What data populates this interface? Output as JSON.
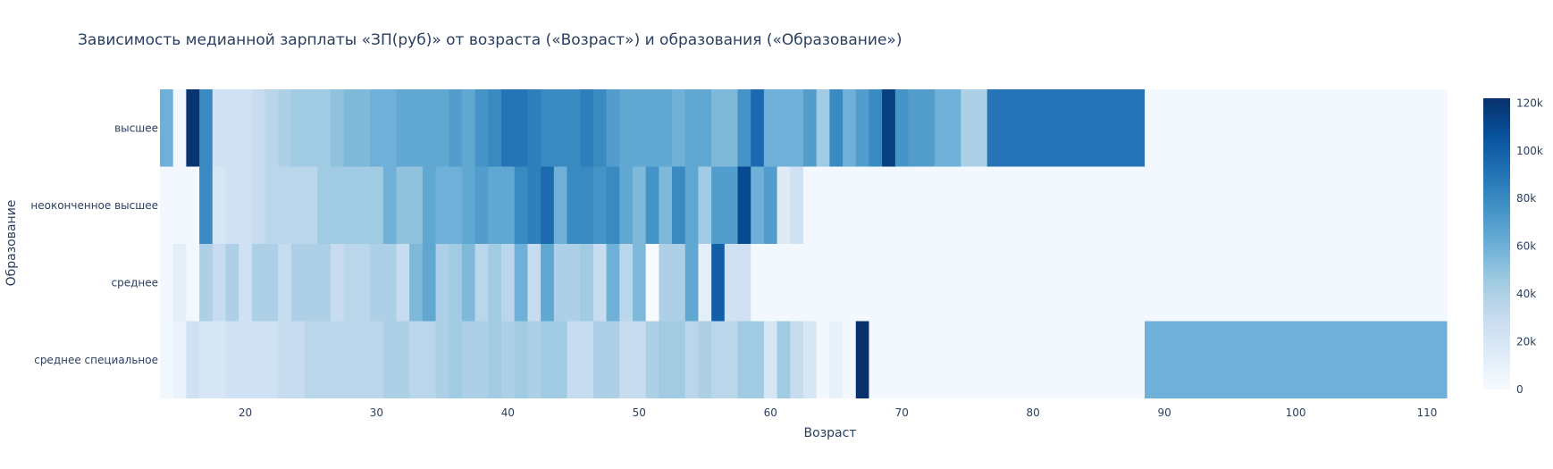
{
  "chart_data": {
    "type": "heatmap",
    "title": "Зависимость медианной зарплаты «ЗП(руб)» от возраста («Возраст») и образования («Образование»)",
    "xlabel": "Возраст",
    "ylabel": "Образование",
    "x_range": [
      13.5,
      111.5
    ],
    "x_ticks": [
      20,
      30,
      40,
      50,
      60,
      70,
      80,
      90,
      100,
      110
    ],
    "categories": [
      "высшее",
      "неоконченное высшее",
      "среднее",
      "среднее специальное"
    ],
    "colorscale": "Blues",
    "colorbar": {
      "min": 0,
      "max": 122000,
      "ticks": [
        0,
        20000,
        40000,
        60000,
        80000,
        100000,
        120000
      ],
      "tick_labels": [
        "0",
        "20k",
        "40k",
        "60k",
        "80k",
        "100k",
        "120k"
      ]
    },
    "rows": [
      {
        "name": "высшее",
        "segments": [
          [
            14,
            14,
            60000
          ],
          [
            15,
            15,
            4000
          ],
          [
            16,
            16,
            120000
          ],
          [
            17,
            17,
            80000
          ],
          [
            18,
            20,
            25000
          ],
          [
            21,
            21,
            30000
          ],
          [
            22,
            22,
            35000
          ],
          [
            23,
            23,
            40000
          ],
          [
            24,
            26,
            45000
          ],
          [
            27,
            27,
            50000
          ],
          [
            28,
            29,
            55000
          ],
          [
            30,
            31,
            60000
          ],
          [
            32,
            35,
            65000
          ],
          [
            36,
            36,
            70000
          ],
          [
            37,
            37,
            65000
          ],
          [
            38,
            38,
            75000
          ],
          [
            39,
            39,
            80000
          ],
          [
            40,
            41,
            90000
          ],
          [
            42,
            42,
            85000
          ],
          [
            43,
            45,
            80000
          ],
          [
            46,
            46,
            85000
          ],
          [
            47,
            47,
            80000
          ],
          [
            48,
            48,
            70000
          ],
          [
            49,
            52,
            65000
          ],
          [
            53,
            53,
            60000
          ],
          [
            54,
            55,
            65000
          ],
          [
            56,
            57,
            55000
          ],
          [
            58,
            58,
            75000
          ],
          [
            59,
            59,
            95000
          ],
          [
            60,
            62,
            60000
          ],
          [
            63,
            63,
            70000
          ],
          [
            64,
            64,
            45000
          ],
          [
            65,
            65,
            80000
          ],
          [
            66,
            66,
            60000
          ],
          [
            67,
            67,
            70000
          ],
          [
            68,
            68,
            80000
          ],
          [
            69,
            69,
            115000
          ],
          [
            70,
            70,
            75000
          ],
          [
            71,
            72,
            70000
          ],
          [
            73,
            74,
            60000
          ],
          [
            75,
            76,
            40000
          ],
          [
            77,
            88,
            90000
          ],
          [
            89,
            111,
            3000
          ]
        ]
      },
      {
        "name": "неоконченное высшее",
        "segments": [
          [
            14,
            16,
            3000
          ],
          [
            17,
            17,
            80000
          ],
          [
            18,
            18,
            20000
          ],
          [
            19,
            20,
            25000
          ],
          [
            21,
            21,
            30000
          ],
          [
            22,
            25,
            35000
          ],
          [
            26,
            30,
            45000
          ],
          [
            31,
            31,
            60000
          ],
          [
            32,
            33,
            50000
          ],
          [
            34,
            34,
            65000
          ],
          [
            35,
            36,
            60000
          ],
          [
            37,
            37,
            65000
          ],
          [
            38,
            38,
            70000
          ],
          [
            39,
            40,
            65000
          ],
          [
            41,
            41,
            80000
          ],
          [
            42,
            42,
            85000
          ],
          [
            43,
            43,
            95000
          ],
          [
            44,
            44,
            60000
          ],
          [
            45,
            46,
            80000
          ],
          [
            47,
            47,
            75000
          ],
          [
            48,
            48,
            80000
          ],
          [
            49,
            49,
            65000
          ],
          [
            50,
            50,
            55000
          ],
          [
            51,
            51,
            75000
          ],
          [
            52,
            52,
            55000
          ],
          [
            53,
            53,
            80000
          ],
          [
            54,
            54,
            65000
          ],
          [
            55,
            55,
            45000
          ],
          [
            56,
            57,
            70000
          ],
          [
            58,
            58,
            110000
          ],
          [
            59,
            59,
            60000
          ],
          [
            60,
            60,
            70000
          ],
          [
            61,
            61,
            15000
          ],
          [
            62,
            62,
            25000
          ],
          [
            63,
            111,
            3000
          ]
        ]
      },
      {
        "name": "среднее",
        "segments": [
          [
            14,
            14,
            3000
          ],
          [
            15,
            15,
            12000
          ],
          [
            16,
            16,
            3000
          ],
          [
            17,
            17,
            40000
          ],
          [
            18,
            18,
            30000
          ],
          [
            19,
            19,
            40000
          ],
          [
            20,
            20,
            25000
          ],
          [
            21,
            22,
            40000
          ],
          [
            23,
            23,
            30000
          ],
          [
            24,
            26,
            40000
          ],
          [
            27,
            27,
            30000
          ],
          [
            28,
            29,
            35000
          ],
          [
            30,
            31,
            40000
          ],
          [
            32,
            32,
            30000
          ],
          [
            33,
            33,
            55000
          ],
          [
            34,
            34,
            65000
          ],
          [
            35,
            35,
            40000
          ],
          [
            36,
            36,
            45000
          ],
          [
            37,
            37,
            55000
          ],
          [
            38,
            38,
            35000
          ],
          [
            39,
            39,
            45000
          ],
          [
            40,
            40,
            35000
          ],
          [
            41,
            41,
            60000
          ],
          [
            42,
            42,
            30000
          ],
          [
            43,
            43,
            65000
          ],
          [
            44,
            45,
            40000
          ],
          [
            46,
            46,
            45000
          ],
          [
            47,
            47,
            30000
          ],
          [
            48,
            48,
            60000
          ],
          [
            49,
            49,
            35000
          ],
          [
            50,
            50,
            55000
          ],
          [
            51,
            51,
            0
          ],
          [
            52,
            53,
            40000
          ],
          [
            54,
            54,
            65000
          ],
          [
            55,
            55,
            12000
          ],
          [
            56,
            56,
            100000
          ],
          [
            57,
            58,
            25000
          ],
          [
            59,
            111,
            3000
          ]
        ]
      },
      {
        "name": "среднее специальное",
        "segments": [
          [
            14,
            14,
            4000
          ],
          [
            15,
            15,
            8000
          ],
          [
            16,
            16,
            25000
          ],
          [
            17,
            18,
            20000
          ],
          [
            19,
            22,
            25000
          ],
          [
            23,
            24,
            30000
          ],
          [
            25,
            30,
            35000
          ],
          [
            31,
            32,
            40000
          ],
          [
            33,
            34,
            35000
          ],
          [
            35,
            35,
            40000
          ],
          [
            36,
            36,
            45000
          ],
          [
            37,
            38,
            40000
          ],
          [
            39,
            39,
            45000
          ],
          [
            40,
            40,
            40000
          ],
          [
            41,
            41,
            45000
          ],
          [
            42,
            42,
            40000
          ],
          [
            43,
            44,
            45000
          ],
          [
            45,
            46,
            30000
          ],
          [
            47,
            48,
            40000
          ],
          [
            49,
            50,
            30000
          ],
          [
            51,
            51,
            40000
          ],
          [
            52,
            53,
            45000
          ],
          [
            54,
            54,
            35000
          ],
          [
            55,
            55,
            40000
          ],
          [
            56,
            57,
            35000
          ],
          [
            58,
            59,
            45000
          ],
          [
            60,
            60,
            20000
          ],
          [
            61,
            61,
            45000
          ],
          [
            62,
            62,
            30000
          ],
          [
            63,
            63,
            20000
          ],
          [
            64,
            64,
            3000
          ],
          [
            65,
            65,
            10000
          ],
          [
            66,
            66,
            3000
          ],
          [
            67,
            67,
            122000
          ],
          [
            68,
            88,
            3000
          ],
          [
            89,
            111,
            60000
          ]
        ]
      }
    ]
  }
}
